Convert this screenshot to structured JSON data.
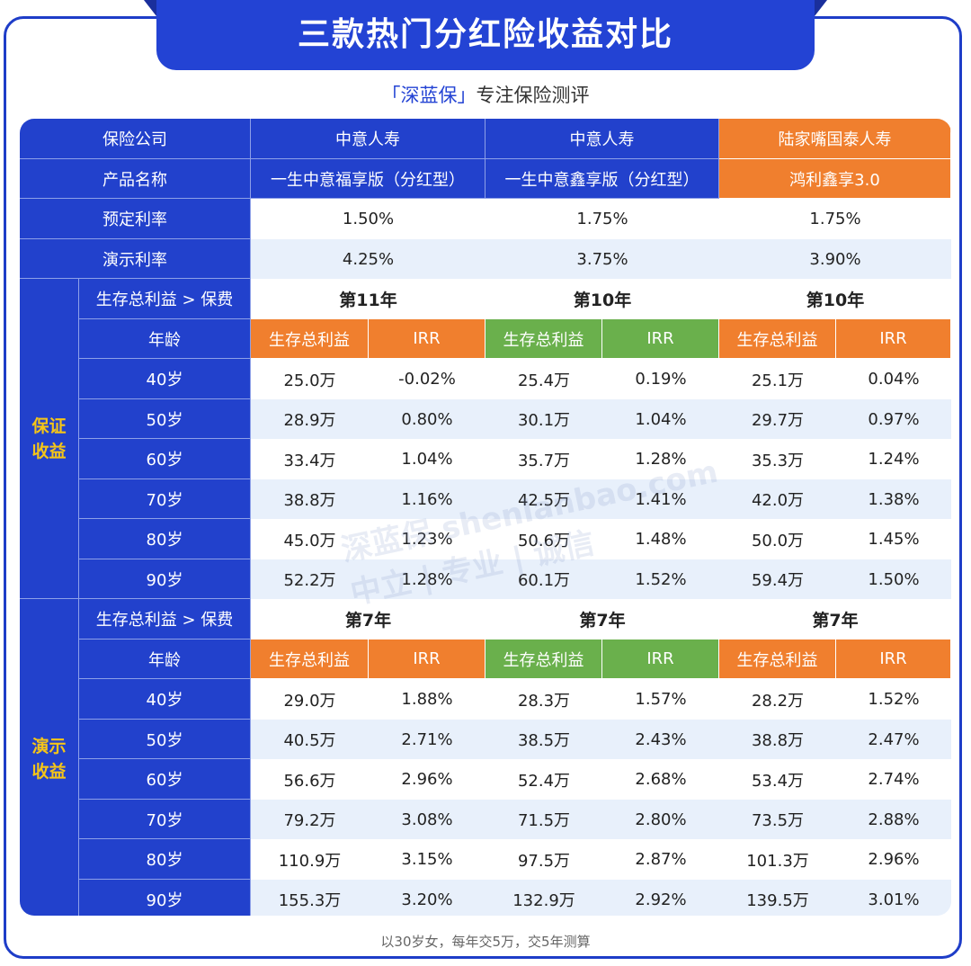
{
  "title": "三款热门分红险收益对比",
  "subtitle": {
    "brand": "「深蓝保」",
    "tagline": "专注保险测评"
  },
  "watermark": {
    "brand": "深蓝保",
    "site": "shenlanbao.com",
    "slogan": "中立 | 专业 | 诚信"
  },
  "labels": {
    "company": "保险公司",
    "product": "产品名称",
    "preset_rate": "预定利率",
    "demo_rate": "演示利率",
    "breakeven": "生存总利益 > 保费",
    "age": "年龄",
    "benefit": "生存总利益",
    "irr": "IRR"
  },
  "products": [
    {
      "company": "中意人寿",
      "name": "一生中意福享版（分红型）",
      "preset_rate": "1.50%",
      "demo_rate": "4.25%"
    },
    {
      "company": "中意人寿",
      "name": "一生中意鑫享版（分红型）",
      "preset_rate": "1.75%",
      "demo_rate": "3.75%"
    },
    {
      "company": "陆家嘴国泰人寿",
      "name": "鸿利鑫享3.0",
      "preset_rate": "1.75%",
      "demo_rate": "3.90%"
    }
  ],
  "guaranteed": {
    "label": "保证\n收益",
    "breakeven": [
      "第11年",
      "第10年",
      "第10年"
    ],
    "rows": [
      {
        "age": "40岁",
        "v": [
          "25.0万",
          "-0.02%",
          "25.4万",
          "0.19%",
          "25.1万",
          "0.04%"
        ]
      },
      {
        "age": "50岁",
        "v": [
          "28.9万",
          "0.80%",
          "30.1万",
          "1.04%",
          "29.7万",
          "0.97%"
        ]
      },
      {
        "age": "60岁",
        "v": [
          "33.4万",
          "1.04%",
          "35.7万",
          "1.28%",
          "35.3万",
          "1.24%"
        ]
      },
      {
        "age": "70岁",
        "v": [
          "38.8万",
          "1.16%",
          "42.5万",
          "1.41%",
          "42.0万",
          "1.38%"
        ]
      },
      {
        "age": "80岁",
        "v": [
          "45.0万",
          "1.23%",
          "50.6万",
          "1.48%",
          "50.0万",
          "1.45%"
        ]
      },
      {
        "age": "90岁",
        "v": [
          "52.2万",
          "1.28%",
          "60.1万",
          "1.52%",
          "59.4万",
          "1.50%"
        ]
      }
    ]
  },
  "demo": {
    "label": "演示\n收益",
    "breakeven": [
      "第7年",
      "第7年",
      "第7年"
    ],
    "rows": [
      {
        "age": "40岁",
        "v": [
          "29.0万",
          "1.88%",
          "28.3万",
          "1.57%",
          "28.2万",
          "1.52%"
        ]
      },
      {
        "age": "50岁",
        "v": [
          "40.5万",
          "2.71%",
          "38.5万",
          "2.43%",
          "38.8万",
          "2.47%"
        ]
      },
      {
        "age": "60岁",
        "v": [
          "56.6万",
          "2.96%",
          "52.4万",
          "2.68%",
          "53.4万",
          "2.74%"
        ]
      },
      {
        "age": "70岁",
        "v": [
          "79.2万",
          "3.08%",
          "71.5万",
          "2.80%",
          "73.5万",
          "2.88%"
        ]
      },
      {
        "age": "80岁",
        "v": [
          "110.9万",
          "3.15%",
          "97.5万",
          "2.87%",
          "101.3万",
          "2.96%"
        ]
      },
      {
        "age": "90岁",
        "v": [
          "155.3万",
          "3.20%",
          "132.9万",
          "2.92%",
          "139.5万",
          "3.01%"
        ]
      }
    ]
  },
  "footnote": "以30岁女，每年交5万，交5年测算",
  "colors": {
    "blue": "#2241cc",
    "orange": "#f07f2e",
    "green": "#6ab04c",
    "gold": "#f5c518",
    "light": "#e8f0fb"
  }
}
